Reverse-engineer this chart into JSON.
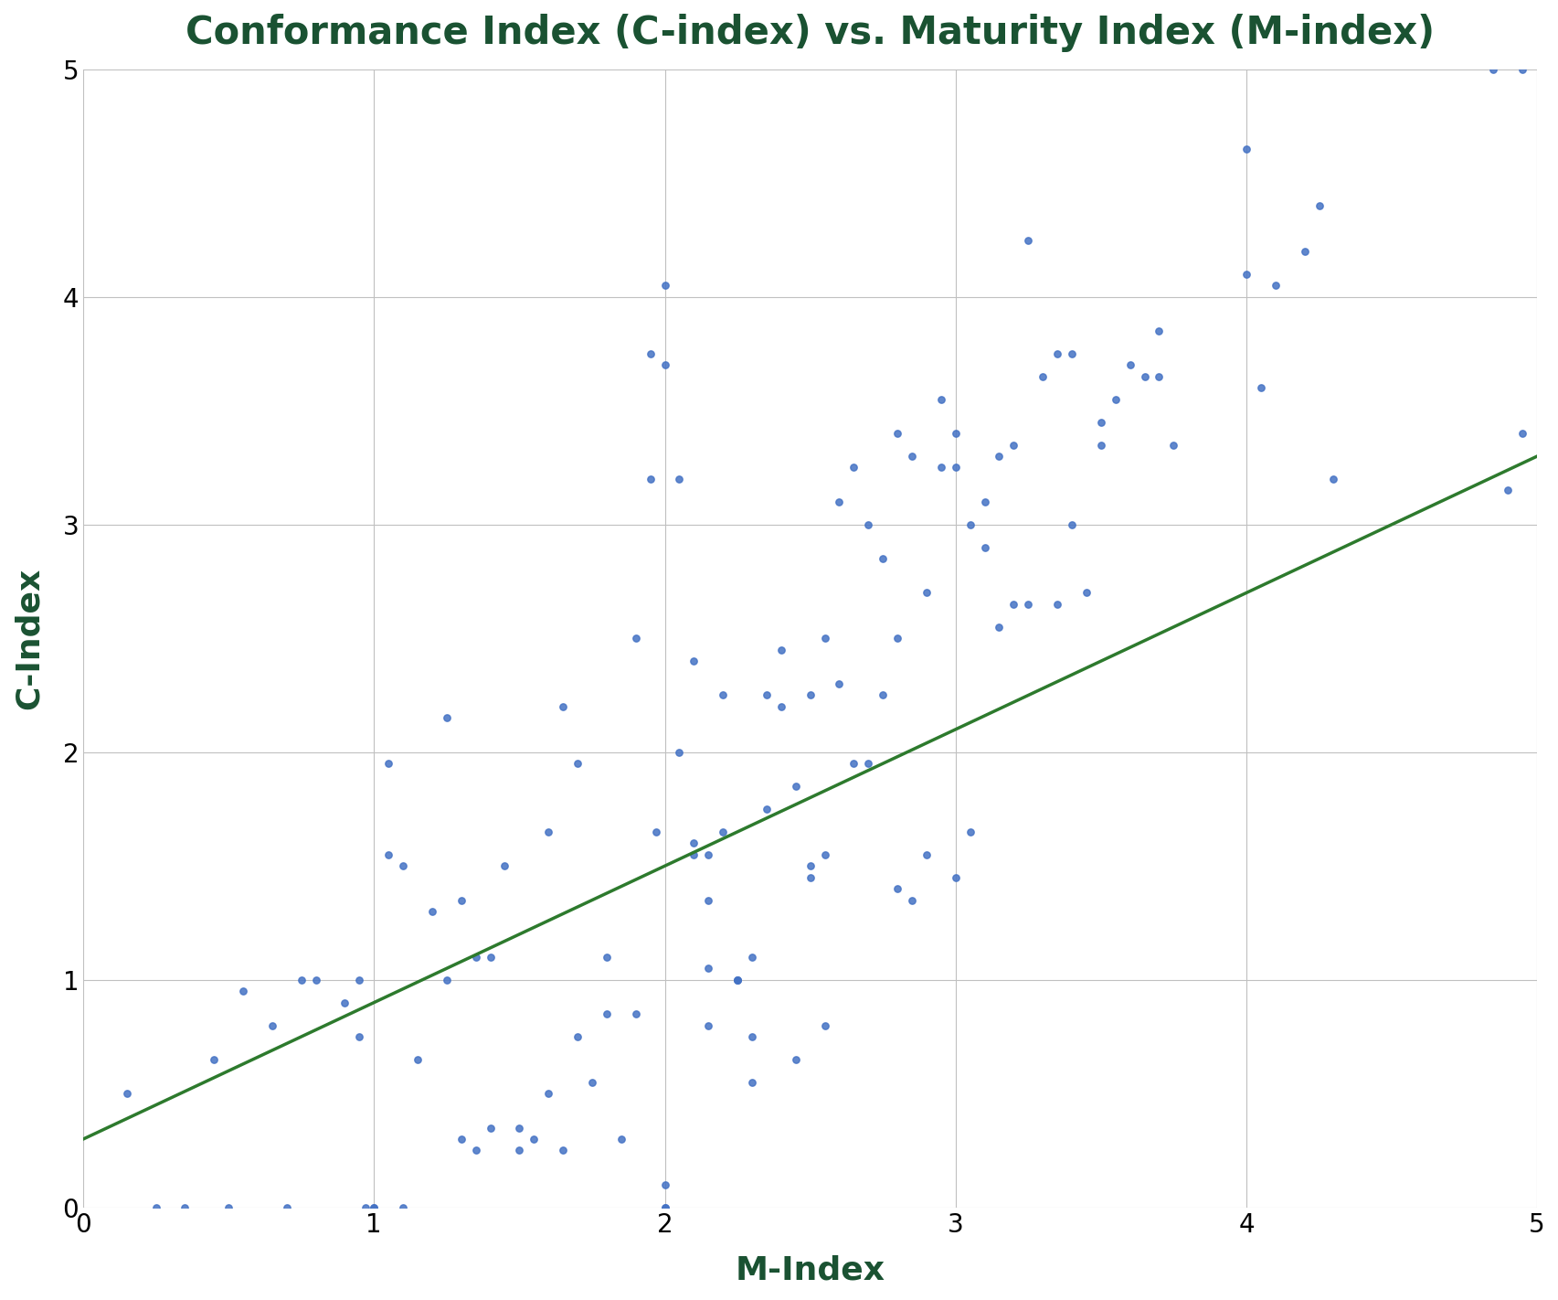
{
  "title": "Conformance Index (C-index) vs. Maturity Index (M-index)",
  "xlabel": "M-Index",
  "ylabel": "C-Index",
  "title_color": "#1a5232",
  "axis_label_color": "#1a5232",
  "dot_color": "#4472C4",
  "trendline_color": "#2d7a2d",
  "xlim": [
    0,
    5
  ],
  "ylim": [
    0,
    5
  ],
  "xticks": [
    0,
    1,
    2,
    3,
    4,
    5
  ],
  "yticks": [
    0,
    1,
    2,
    3,
    4,
    5
  ],
  "grid_color": "#c0c0c0",
  "dot_size": 28,
  "trendline_intercept": 0.3,
  "trendline_slope": 0.6,
  "x_data": [
    0.15,
    0.25,
    0.35,
    0.45,
    0.5,
    0.55,
    0.65,
    0.7,
    0.75,
    0.8,
    0.9,
    0.95,
    0.95,
    0.97,
    1.0,
    1.0,
    1.05,
    1.05,
    1.1,
    1.1,
    1.15,
    1.2,
    1.25,
    1.25,
    1.3,
    1.3,
    1.35,
    1.35,
    1.4,
    1.4,
    1.45,
    1.5,
    1.5,
    1.55,
    1.6,
    1.6,
    1.65,
    1.65,
    1.7,
    1.7,
    1.75,
    1.8,
    1.8,
    1.85,
    1.9,
    1.9,
    1.95,
    1.95,
    1.97,
    2.0,
    2.0,
    2.0,
    2.0,
    2.0,
    2.05,
    2.05,
    2.1,
    2.1,
    2.1,
    2.15,
    2.15,
    2.15,
    2.15,
    2.2,
    2.2,
    2.25,
    2.25,
    2.25,
    2.3,
    2.3,
    2.3,
    2.35,
    2.35,
    2.4,
    2.4,
    2.45,
    2.45,
    2.5,
    2.5,
    2.5,
    2.55,
    2.55,
    2.55,
    2.6,
    2.6,
    2.65,
    2.65,
    2.7,
    2.7,
    2.75,
    2.75,
    2.8,
    2.8,
    2.8,
    2.85,
    2.85,
    2.9,
    2.9,
    2.95,
    2.95,
    3.0,
    3.0,
    3.0,
    3.05,
    3.05,
    3.1,
    3.1,
    3.15,
    3.15,
    3.2,
    3.2,
    3.25,
    3.25,
    3.3,
    3.35,
    3.35,
    3.4,
    3.4,
    3.45,
    3.5,
    3.5,
    3.55,
    3.6,
    3.65,
    3.7,
    3.7,
    3.75,
    4.0,
    4.0,
    4.05,
    4.1,
    4.2,
    4.25,
    4.3,
    4.85,
    4.9,
    4.95,
    4.95
  ],
  "y_data": [
    0.5,
    0.0,
    0.0,
    0.65,
    0.0,
    0.95,
    0.8,
    0.0,
    1.0,
    1.0,
    0.9,
    1.0,
    0.75,
    0.0,
    0.0,
    0.0,
    1.55,
    1.95,
    1.5,
    0.0,
    0.65,
    1.3,
    2.15,
    1.0,
    1.35,
    0.3,
    0.25,
    1.1,
    0.35,
    1.1,
    1.5,
    0.25,
    0.35,
    0.3,
    0.5,
    1.65,
    0.25,
    2.2,
    1.95,
    0.75,
    0.55,
    0.85,
    1.1,
    0.3,
    2.5,
    0.85,
    3.75,
    3.2,
    1.65,
    0.0,
    0.0,
    0.1,
    3.7,
    4.05,
    3.2,
    2.0,
    1.55,
    1.6,
    2.4,
    0.8,
    1.55,
    1.35,
    1.05,
    2.25,
    1.65,
    1.0,
    1.0,
    1.0,
    1.1,
    0.75,
    0.55,
    1.75,
    2.25,
    2.2,
    2.45,
    0.65,
    1.85,
    1.45,
    2.25,
    1.5,
    0.8,
    2.5,
    1.55,
    2.3,
    3.1,
    3.25,
    1.95,
    1.95,
    3.0,
    2.85,
    2.25,
    2.5,
    3.4,
    1.4,
    3.3,
    1.35,
    2.7,
    1.55,
    3.55,
    3.25,
    3.4,
    1.45,
    3.25,
    1.65,
    3.0,
    3.1,
    2.9,
    3.3,
    2.55,
    3.35,
    2.65,
    2.65,
    4.25,
    3.65,
    2.65,
    3.75,
    3.75,
    3.0,
    2.7,
    3.45,
    3.35,
    3.55,
    3.7,
    3.65,
    3.85,
    3.65,
    3.35,
    4.1,
    4.65,
    3.6,
    4.05,
    4.2,
    4.4,
    3.2,
    5.0,
    3.15,
    3.4,
    5.0
  ]
}
